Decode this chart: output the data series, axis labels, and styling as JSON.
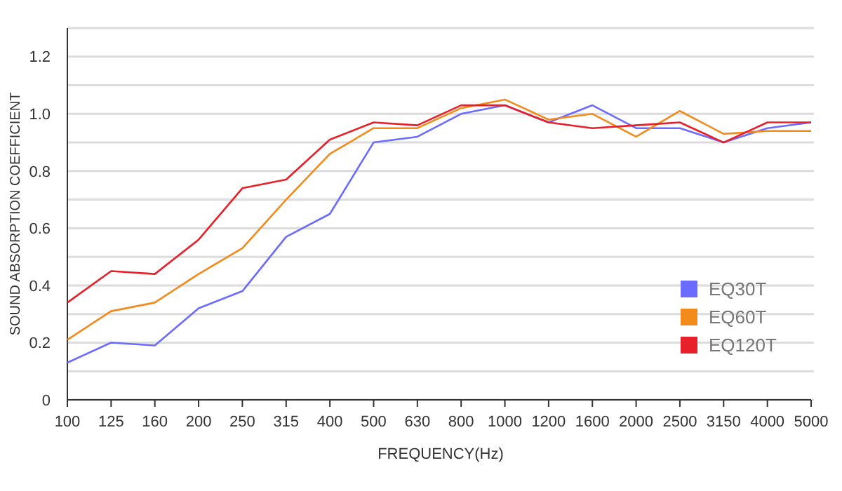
{
  "chart_data": {
    "type": "line",
    "xlabel": "FREQUENCY(Hz)",
    "ylabel": "SOUND ABSORPTION COEFFICIENT",
    "categories": [
      "100",
      "125",
      "160",
      "200",
      "250",
      "315",
      "400",
      "500",
      "630",
      "800",
      "1000",
      "1200",
      "1600",
      "2000",
      "2500",
      "3150",
      "4000",
      "5000"
    ],
    "series": [
      {
        "name": "EQ30T",
        "color": "#6b6bff",
        "values": [
          0.13,
          0.2,
          0.19,
          0.32,
          0.38,
          0.57,
          0.65,
          0.9,
          0.92,
          1.0,
          1.03,
          0.97,
          1.03,
          0.95,
          0.95,
          0.9,
          0.95,
          0.97
        ]
      },
      {
        "name": "EQ60T",
        "color": "#f28a1c",
        "values": [
          0.21,
          0.31,
          0.34,
          0.44,
          0.53,
          0.7,
          0.86,
          0.95,
          0.95,
          1.02,
          1.05,
          0.98,
          1.0,
          0.92,
          1.01,
          0.93,
          0.94,
          0.94
        ]
      },
      {
        "name": "EQ120T",
        "color": "#e8202a",
        "values": [
          0.34,
          0.45,
          0.44,
          0.56,
          0.74,
          0.77,
          0.91,
          0.97,
          0.96,
          1.03,
          1.03,
          0.97,
          0.95,
          0.96,
          0.97,
          0.9,
          0.97,
          0.97
        ]
      }
    ],
    "ylim": [
      0,
      1.3
    ],
    "yticks": [
      0,
      {
        "value": 0.1,
        "label": null
      },
      0.2,
      {
        "value": 0.3,
        "label": null
      },
      0.4,
      {
        "value": 0.5,
        "label": null
      },
      0.6,
      {
        "value": 0.7,
        "label": null
      },
      0.8,
      {
        "value": 0.9,
        "label": null
      },
      {
        "value": 1,
        "label": "1.0"
      },
      {
        "value": 1.1,
        "label": null
      },
      1.2,
      {
        "value": 1.3,
        "label": null
      }
    ],
    "grid": "y",
    "legend": "bottom right",
    "marker": "none",
    "line_style": "solid"
  }
}
